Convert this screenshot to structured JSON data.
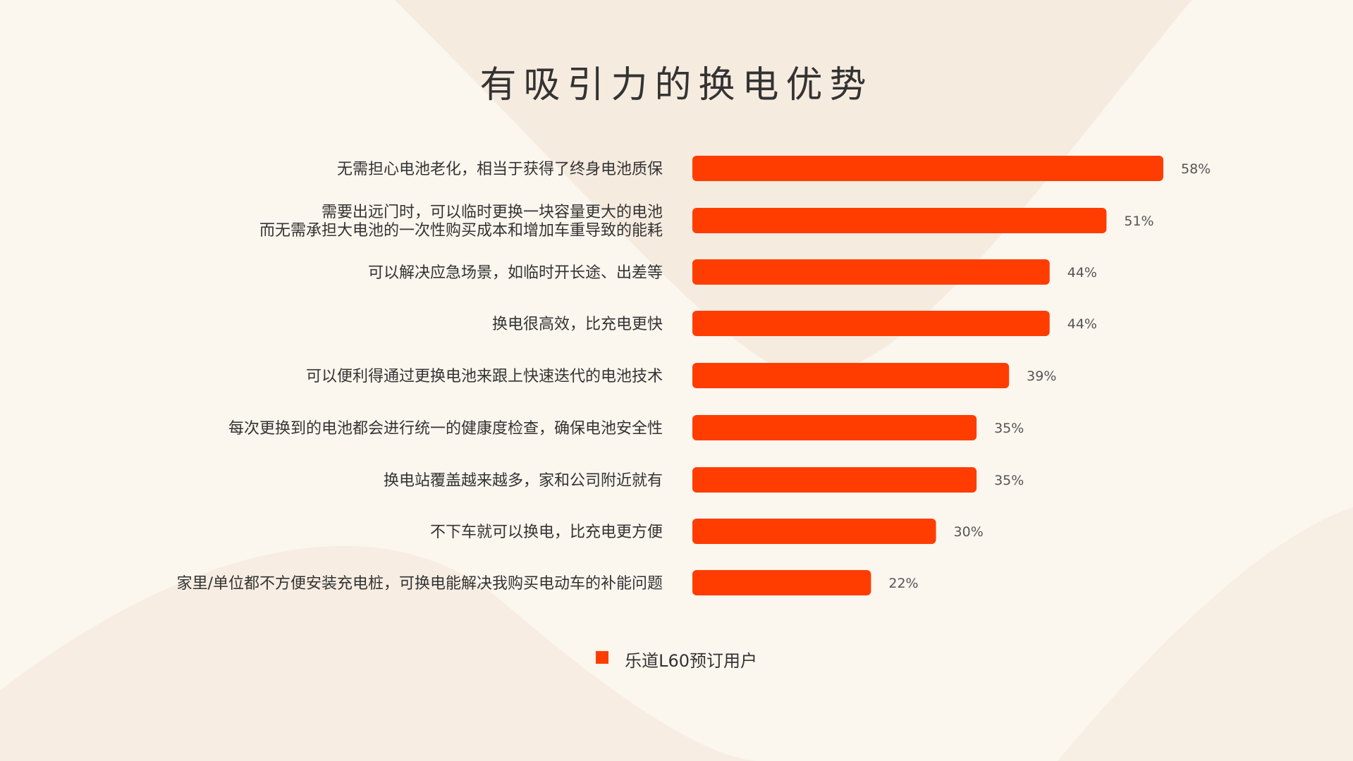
{
  "page": {
    "title": "有吸引力的换电优势"
  },
  "colors": {
    "bar": "#ff3d00",
    "background": "#fbf6ee"
  },
  "chart_data": {
    "type": "bar",
    "orientation": "horizontal",
    "title": "有吸引力的换电优势",
    "xlabel": "",
    "ylabel": "",
    "value_unit": "%",
    "xlim": [
      0,
      58
    ],
    "grid": false,
    "legend": "bottom-center",
    "categories": [
      [
        "无需担心电池老化，相当于获得了终身电池质保"
      ],
      [
        "需要出远门时，可以临时更换一块容量更大的电池",
        "而无需承担大电池的一次性购买成本和增加车重导致的能耗"
      ],
      [
        "可以解决应急场景，如临时开长途、出差等"
      ],
      [
        "换电很高效，比充电更快"
      ],
      [
        "可以便利得通过更换电池来跟上快速迭代的电池技术"
      ],
      [
        "每次更换到的电池都会进行统一的健康度检查，确保电池安全性"
      ],
      [
        "换电站覆盖越来越多，家和公司附近就有"
      ],
      [
        "不下车就可以换电，比充电更方便"
      ],
      [
        "家里/单位都不方便安装充电桩，可换电能解决我购买电动车的补能问题"
      ]
    ],
    "series": [
      {
        "name": "乐道L60预订用户",
        "values": [
          58,
          51,
          44,
          44,
          39,
          35,
          35,
          30,
          22
        ],
        "labels": [
          "58%",
          "51%",
          "44%",
          "44%",
          "39%",
          "35%",
          "35%",
          "30%",
          "22%"
        ]
      }
    ]
  }
}
